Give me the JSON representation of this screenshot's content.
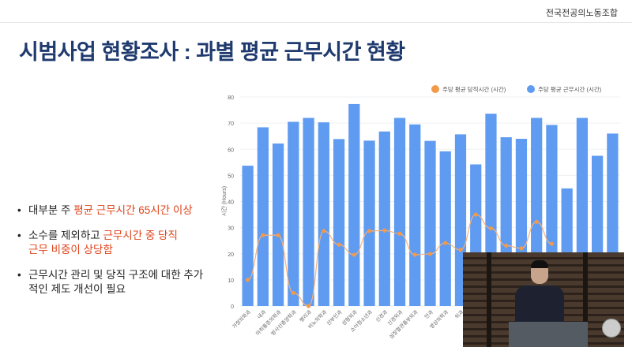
{
  "header": {
    "organization": "전국전공의노동조합"
  },
  "slide": {
    "title": "시범사업 현황조사 : 과별 평균 근무시간 현황",
    "bullets": [
      {
        "prefix": "대부분 주 ",
        "highlight": "평균 근무시간 65시간 이상",
        "suffix": ""
      },
      {
        "prefix": "소수를 제외하고 ",
        "highlight": "근무시간 중 당직근무 비중이 상당함",
        "suffix": ""
      },
      {
        "prefix": "근무시간 관리 및 당직 구조에 대한 추가적인 제도 개선이 필요",
        "highlight": "",
        "suffix": ""
      }
    ]
  },
  "colors": {
    "bar": "#5f9bf0",
    "line": "#f29a4a",
    "title": "#1f3a6e",
    "highlight": "#e0431a"
  },
  "chart_data": {
    "type": "bar",
    "title": "",
    "xlabel": "",
    "ylabel": "시간 (Hours)",
    "ylim": [
      0,
      80
    ],
    "yticks": [
      0,
      10,
      20,
      30,
      40,
      50,
      60,
      70,
      80
    ],
    "legend_position": "top-right",
    "categories": [
      "가정의학과",
      "내과",
      "마취통증의학과",
      "방사선종양학과",
      "병리과",
      "비뇨의학과",
      "산부인과",
      "성형외과",
      "소아청소년과",
      "신경과",
      "신경외과",
      "심장혈관흉부외과",
      "안과",
      "영상의학과",
      "외과",
      "",
      "",
      "",
      "",
      "",
      "",
      "",
      "",
      "",
      ""
    ],
    "series": [
      {
        "name": "주당 평균 당직시간 (시간)",
        "type": "line",
        "values": [
          10,
          27.1,
          27.1,
          5,
          0,
          28.7,
          23.5,
          19.6,
          28.7,
          28.9,
          27.7,
          19.6,
          19.9,
          24.1,
          21.5,
          35,
          29.7,
          23.1,
          22.1,
          32.2,
          23.8,
          null,
          null,
          null,
          null
        ]
      },
      {
        "name": "주당 평균 근무시간 (시간)",
        "type": "bar",
        "values": [
          53.7,
          68.4,
          62.2,
          70.5,
          72,
          70.3,
          63.9,
          77.3,
          63.3,
          66.8,
          72,
          69.5,
          63.2,
          59.2,
          65.7,
          54.2,
          73.6,
          64.6,
          64,
          72,
          69.3,
          45,
          72,
          57.5,
          66
        ]
      }
    ]
  }
}
